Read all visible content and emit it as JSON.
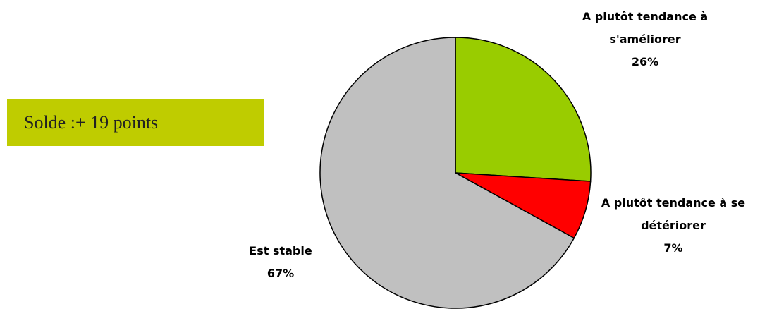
{
  "chart_data": {
    "type": "pie",
    "categories": [
      "A plutôt tendance à s'améliorer",
      "A plutôt tendance à se détériorer",
      "Est stable"
    ],
    "values": [
      26,
      7,
      67
    ],
    "value_labels": [
      "26%",
      "7%",
      "67%"
    ],
    "colors": [
      "#99cc00",
      "#ff0000",
      "#c0c0c0"
    ],
    "annotation": "Solde :+ 19 points"
  }
}
